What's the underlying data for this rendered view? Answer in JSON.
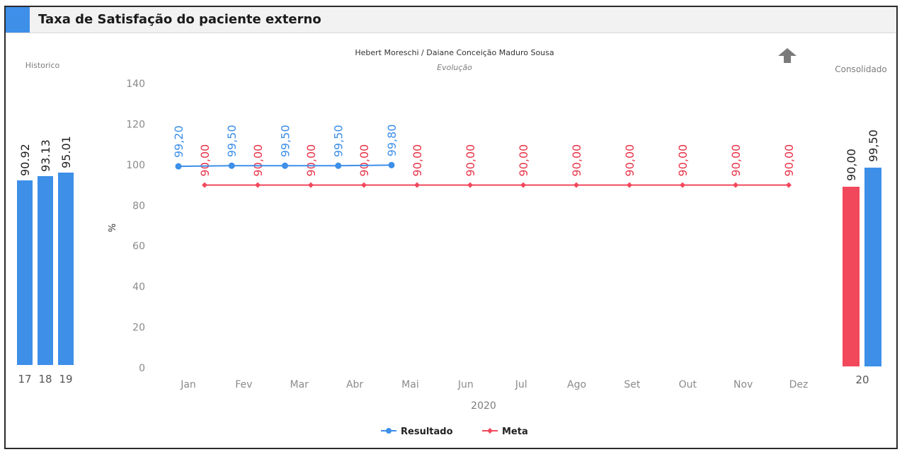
{
  "title": "Taxa de Satisfação do paciente externo",
  "colors": {
    "resultado": "#3d8fe8",
    "meta": "#f2485c",
    "resultado_label": "#3d8fe8",
    "meta_label": "#e8364b",
    "axis_text": "#8a8a8a",
    "title_accent": "#3d8fe8"
  },
  "chart_data": [
    {
      "type": "bar",
      "panel": "historico",
      "title": "Historico",
      "categories": [
        "17",
        "18",
        "19"
      ],
      "values": [
        90.92,
        93.13,
        95.01
      ],
      "value_labels": [
        "90.92",
        "93.13",
        "95.01"
      ],
      "ylim": [
        0,
        95.01
      ]
    },
    {
      "type": "line",
      "panel": "evolucao",
      "title": "Hebert Moreschi / Daiane Conceição Maduro Sousa",
      "subtitle": "Evolução",
      "xlabel": "2020",
      "ylabel": "%",
      "categories": [
        "Jan",
        "Fev",
        "Mar",
        "Abr",
        "Mai",
        "Jun",
        "Jul",
        "Ago",
        "Set",
        "Out",
        "Nov",
        "Dez"
      ],
      "yticks": [
        "0",
        "20",
        "40",
        "60",
        "80",
        "100",
        "120",
        "140"
      ],
      "ylim": [
        0,
        140
      ],
      "grid": false,
      "legend_position": "bottom-center",
      "series": [
        {
          "name": "Resultado",
          "values": [
            99.2,
            99.5,
            99.5,
            99.5,
            99.8,
            null,
            null,
            null,
            null,
            null,
            null,
            null
          ],
          "labels": [
            "99,20",
            "99,50",
            "99,50",
            "99,50",
            "99,80",
            "",
            "",
            "",
            "",
            "",
            "",
            ""
          ]
        },
        {
          "name": "Meta",
          "values": [
            90,
            90,
            90,
            90,
            90,
            90,
            90,
            90,
            90,
            90,
            90,
            90
          ],
          "labels": [
            "90,00",
            "90,00",
            "90,00",
            "90,00",
            "90,00",
            "90,00",
            "90,00",
            "90,00",
            "90,00",
            "90,00",
            "90,00",
            "90,00"
          ]
        }
      ]
    },
    {
      "type": "bar",
      "panel": "consolidado",
      "title": "Consolidado",
      "categories": [
        "20"
      ],
      "series": [
        {
          "name": "Meta",
          "values": [
            90.0
          ],
          "labels": [
            "90,00"
          ]
        },
        {
          "name": "Resultado",
          "values": [
            99.5
          ],
          "labels": [
            "99,50"
          ]
        }
      ],
      "ylim": [
        0,
        99.5
      ]
    }
  ],
  "indicator": {
    "icon": "up-arrow-icon",
    "color": "#7a7a7a"
  }
}
